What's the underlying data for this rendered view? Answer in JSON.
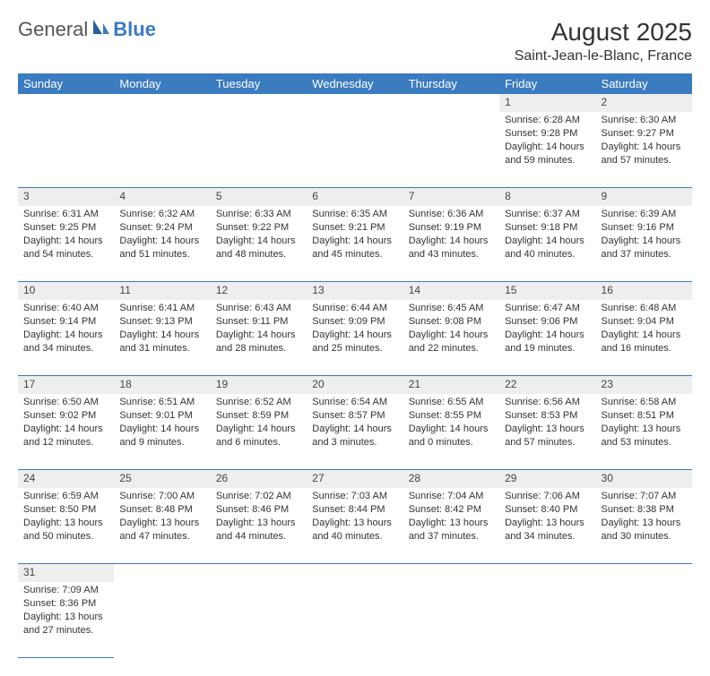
{
  "logo": {
    "general": "General",
    "blue": "Blue"
  },
  "title": "August 2025",
  "location": "Saint-Jean-le-Blanc, France",
  "colors": {
    "header_bg": "#3b7bbf",
    "header_fg": "#ffffff",
    "daynum_bg": "#eeeeee",
    "rule": "#3b7bbf",
    "text": "#333333"
  },
  "weekdays": [
    "Sunday",
    "Monday",
    "Tuesday",
    "Wednesday",
    "Thursday",
    "Friday",
    "Saturday"
  ],
  "weeks": [
    [
      null,
      null,
      null,
      null,
      null,
      {
        "n": "1",
        "sr": "Sunrise: 6:28 AM",
        "ss": "Sunset: 9:28 PM",
        "dl": "Daylight: 14 hours and 59 minutes."
      },
      {
        "n": "2",
        "sr": "Sunrise: 6:30 AM",
        "ss": "Sunset: 9:27 PM",
        "dl": "Daylight: 14 hours and 57 minutes."
      }
    ],
    [
      {
        "n": "3",
        "sr": "Sunrise: 6:31 AM",
        "ss": "Sunset: 9:25 PM",
        "dl": "Daylight: 14 hours and 54 minutes."
      },
      {
        "n": "4",
        "sr": "Sunrise: 6:32 AM",
        "ss": "Sunset: 9:24 PM",
        "dl": "Daylight: 14 hours and 51 minutes."
      },
      {
        "n": "5",
        "sr": "Sunrise: 6:33 AM",
        "ss": "Sunset: 9:22 PM",
        "dl": "Daylight: 14 hours and 48 minutes."
      },
      {
        "n": "6",
        "sr": "Sunrise: 6:35 AM",
        "ss": "Sunset: 9:21 PM",
        "dl": "Daylight: 14 hours and 45 minutes."
      },
      {
        "n": "7",
        "sr": "Sunrise: 6:36 AM",
        "ss": "Sunset: 9:19 PM",
        "dl": "Daylight: 14 hours and 43 minutes."
      },
      {
        "n": "8",
        "sr": "Sunrise: 6:37 AM",
        "ss": "Sunset: 9:18 PM",
        "dl": "Daylight: 14 hours and 40 minutes."
      },
      {
        "n": "9",
        "sr": "Sunrise: 6:39 AM",
        "ss": "Sunset: 9:16 PM",
        "dl": "Daylight: 14 hours and 37 minutes."
      }
    ],
    [
      {
        "n": "10",
        "sr": "Sunrise: 6:40 AM",
        "ss": "Sunset: 9:14 PM",
        "dl": "Daylight: 14 hours and 34 minutes."
      },
      {
        "n": "11",
        "sr": "Sunrise: 6:41 AM",
        "ss": "Sunset: 9:13 PM",
        "dl": "Daylight: 14 hours and 31 minutes."
      },
      {
        "n": "12",
        "sr": "Sunrise: 6:43 AM",
        "ss": "Sunset: 9:11 PM",
        "dl": "Daylight: 14 hours and 28 minutes."
      },
      {
        "n": "13",
        "sr": "Sunrise: 6:44 AM",
        "ss": "Sunset: 9:09 PM",
        "dl": "Daylight: 14 hours and 25 minutes."
      },
      {
        "n": "14",
        "sr": "Sunrise: 6:45 AM",
        "ss": "Sunset: 9:08 PM",
        "dl": "Daylight: 14 hours and 22 minutes."
      },
      {
        "n": "15",
        "sr": "Sunrise: 6:47 AM",
        "ss": "Sunset: 9:06 PM",
        "dl": "Daylight: 14 hours and 19 minutes."
      },
      {
        "n": "16",
        "sr": "Sunrise: 6:48 AM",
        "ss": "Sunset: 9:04 PM",
        "dl": "Daylight: 14 hours and 16 minutes."
      }
    ],
    [
      {
        "n": "17",
        "sr": "Sunrise: 6:50 AM",
        "ss": "Sunset: 9:02 PM",
        "dl": "Daylight: 14 hours and 12 minutes."
      },
      {
        "n": "18",
        "sr": "Sunrise: 6:51 AM",
        "ss": "Sunset: 9:01 PM",
        "dl": "Daylight: 14 hours and 9 minutes."
      },
      {
        "n": "19",
        "sr": "Sunrise: 6:52 AM",
        "ss": "Sunset: 8:59 PM",
        "dl": "Daylight: 14 hours and 6 minutes."
      },
      {
        "n": "20",
        "sr": "Sunrise: 6:54 AM",
        "ss": "Sunset: 8:57 PM",
        "dl": "Daylight: 14 hours and 3 minutes."
      },
      {
        "n": "21",
        "sr": "Sunrise: 6:55 AM",
        "ss": "Sunset: 8:55 PM",
        "dl": "Daylight: 14 hours and 0 minutes."
      },
      {
        "n": "22",
        "sr": "Sunrise: 6:56 AM",
        "ss": "Sunset: 8:53 PM",
        "dl": "Daylight: 13 hours and 57 minutes."
      },
      {
        "n": "23",
        "sr": "Sunrise: 6:58 AM",
        "ss": "Sunset: 8:51 PM",
        "dl": "Daylight: 13 hours and 53 minutes."
      }
    ],
    [
      {
        "n": "24",
        "sr": "Sunrise: 6:59 AM",
        "ss": "Sunset: 8:50 PM",
        "dl": "Daylight: 13 hours and 50 minutes."
      },
      {
        "n": "25",
        "sr": "Sunrise: 7:00 AM",
        "ss": "Sunset: 8:48 PM",
        "dl": "Daylight: 13 hours and 47 minutes."
      },
      {
        "n": "26",
        "sr": "Sunrise: 7:02 AM",
        "ss": "Sunset: 8:46 PM",
        "dl": "Daylight: 13 hours and 44 minutes."
      },
      {
        "n": "27",
        "sr": "Sunrise: 7:03 AM",
        "ss": "Sunset: 8:44 PM",
        "dl": "Daylight: 13 hours and 40 minutes."
      },
      {
        "n": "28",
        "sr": "Sunrise: 7:04 AM",
        "ss": "Sunset: 8:42 PM",
        "dl": "Daylight: 13 hours and 37 minutes."
      },
      {
        "n": "29",
        "sr": "Sunrise: 7:06 AM",
        "ss": "Sunset: 8:40 PM",
        "dl": "Daylight: 13 hours and 34 minutes."
      },
      {
        "n": "30",
        "sr": "Sunrise: 7:07 AM",
        "ss": "Sunset: 8:38 PM",
        "dl": "Daylight: 13 hours and 30 minutes."
      }
    ],
    [
      {
        "n": "31",
        "sr": "Sunrise: 7:09 AM",
        "ss": "Sunset: 8:36 PM",
        "dl": "Daylight: 13 hours and 27 minutes."
      },
      null,
      null,
      null,
      null,
      null,
      null
    ]
  ]
}
